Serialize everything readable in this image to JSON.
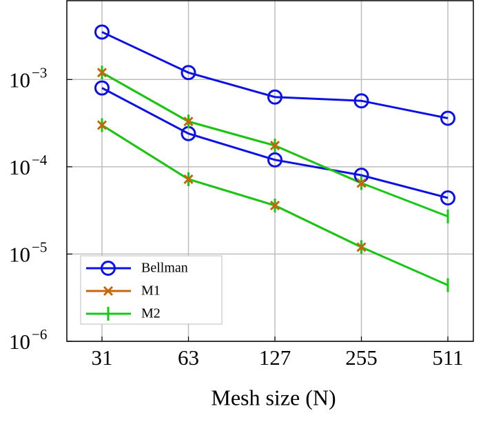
{
  "chart_data": {
    "type": "line",
    "xlabel": "Mesh size (N)",
    "categories": [
      "31",
      "63",
      "127",
      "255",
      "511"
    ],
    "log_y": true,
    "grid": true,
    "legend": "lower left",
    "ylim": [
      1e-06,
      0.008
    ],
    "yticks": [
      {
        "value": 1e-06,
        "label": "10",
        "exponent": "−6"
      },
      {
        "value": 1e-05,
        "label": "10",
        "exponent": "−5"
      },
      {
        "value": 0.0001,
        "label": "10",
        "exponent": "−4"
      },
      {
        "value": 0.001,
        "label": "10",
        "exponent": "−3"
      }
    ],
    "series": [
      {
        "name": "Bellman",
        "color": "#0a10e6",
        "marker": "circle",
        "values": [
          [
            0.0035,
            0.0012,
            0.00063,
            0.00057,
            0.00036
          ],
          [
            0.0008,
            0.00024,
            0.00012,
            8e-05,
            4.4e-05
          ]
        ]
      },
      {
        "name": "M1",
        "color": "#c8640a",
        "marker": "x",
        "values": [
          [
            0.0012,
            0.00033,
            0.000175,
            6.5e-05,
            null
          ],
          [
            0.0003,
            7.2e-05,
            3.6e-05,
            1.2e-05,
            null
          ]
        ]
      },
      {
        "name": "M2",
        "color": "#14c814",
        "marker": "bar",
        "values": [
          [
            0.0012,
            0.00033,
            0.000175,
            6.5e-05,
            2.7e-05
          ],
          [
            0.0003,
            7.2e-05,
            3.6e-05,
            1.2e-05,
            4.4e-06
          ]
        ]
      }
    ]
  }
}
